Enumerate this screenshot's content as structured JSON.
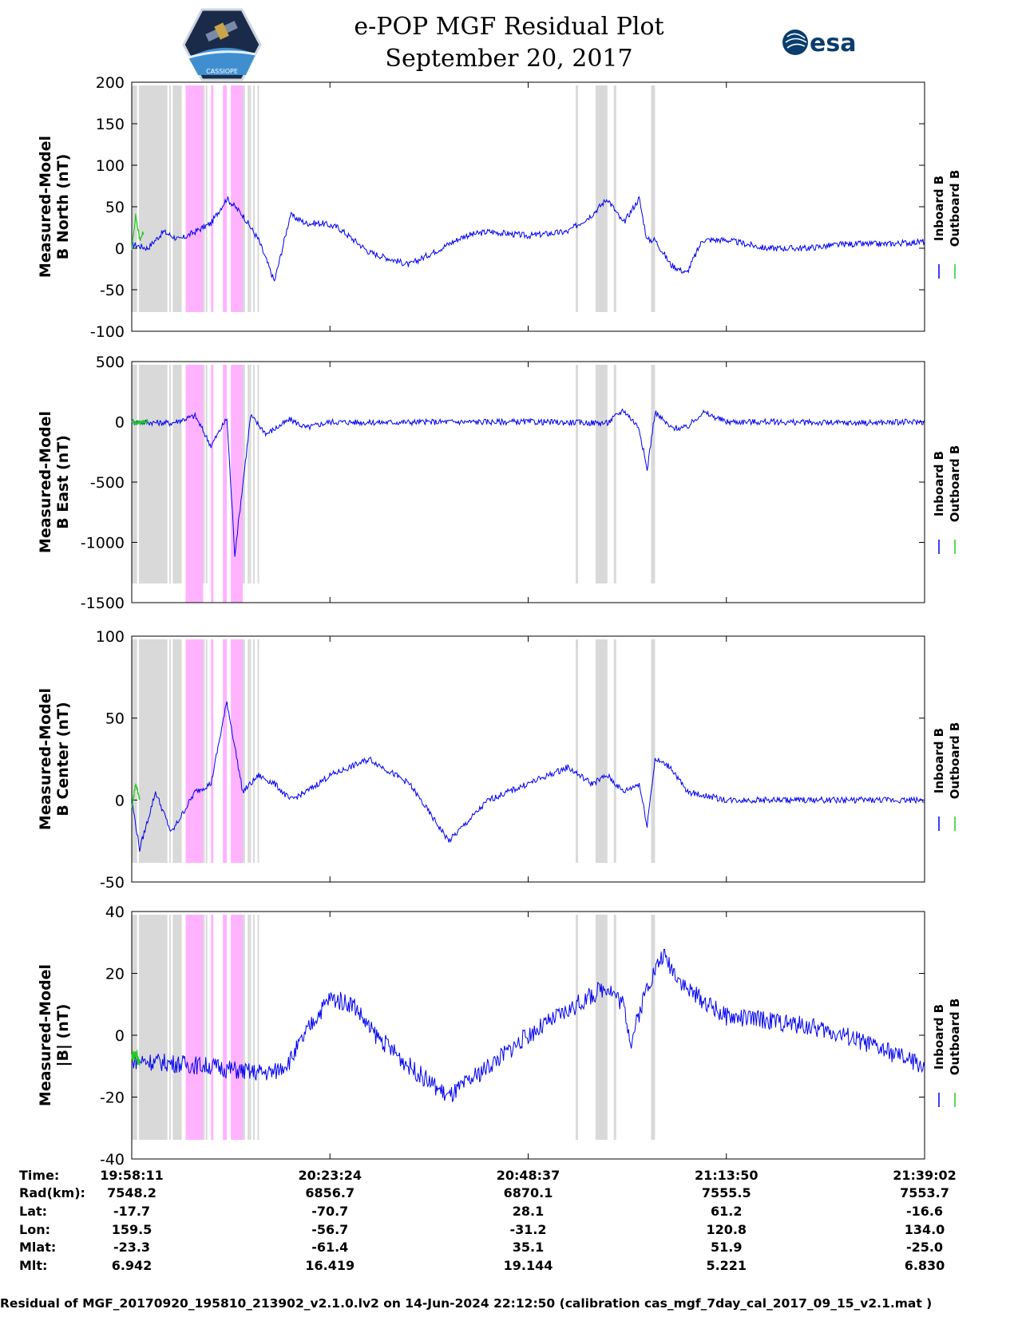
{
  "header": {
    "title": "e-POP MGF Residual Plot",
    "date": "September 20, 2017",
    "left_logo": {
      "icon": "cassiope-mission-logo",
      "text": "CASSIOPE"
    },
    "right_logo": {
      "icon": "esa-logo",
      "text": "esa"
    }
  },
  "colors": {
    "inboard": "#0000ee",
    "outboard": "#22cc22",
    "gap_shade": "#d9d9d9",
    "flag_shade": "#ffb3ff"
  },
  "chart_data": [
    {
      "type": "line",
      "ylabel_line1": "Measured-Model",
      "ylabel_line2": "B North (nT)",
      "ylim": [
        -100,
        200
      ],
      "yticks": [
        "200",
        "150",
        "100",
        "50",
        "0",
        "-50",
        "-100"
      ],
      "legend": [
        "Inboard B",
        "Outboard B"
      ],
      "series": [
        {
          "name": "Inboard B",
          "x": [
            0,
            0.02,
            0.04,
            0.06,
            0.08,
            0.1,
            0.12,
            0.14,
            0.16,
            0.18,
            0.2,
            0.22,
            0.24,
            0.26,
            0.3,
            0.35,
            0.4,
            0.42,
            0.45,
            0.5,
            0.55,
            0.58,
            0.6,
            0.62,
            0.64,
            0.65,
            0.66,
            0.68,
            0.7,
            0.72,
            0.75,
            0.8,
            0.85,
            0.9,
            0.95,
            1.0
          ],
          "values": [
            5,
            0,
            20,
            10,
            20,
            30,
            60,
            40,
            10,
            -40,
            40,
            30,
            30,
            25,
            -5,
            -20,
            5,
            15,
            20,
            15,
            20,
            40,
            60,
            30,
            60,
            10,
            10,
            -20,
            -30,
            10,
            10,
            0,
            0,
            5,
            5,
            8
          ]
        },
        {
          "name": "Outboard B",
          "x": [
            0,
            0.005,
            0.01,
            0.015
          ],
          "values": [
            0,
            40,
            10,
            20
          ]
        }
      ]
    },
    {
      "type": "line",
      "ylabel_line1": "Measured-Model",
      "ylabel_line2": "B East (nT)",
      "ylim": [
        -1500,
        500
      ],
      "yticks": [
        "500",
        "0",
        "-500",
        "-1000",
        "-1500"
      ],
      "legend": [
        "Inboard B",
        "Outboard B"
      ],
      "series": [
        {
          "name": "Inboard B",
          "x": [
            0,
            0.05,
            0.08,
            0.1,
            0.12,
            0.13,
            0.15,
            0.17,
            0.2,
            0.22,
            0.25,
            0.3,
            0.4,
            0.5,
            0.6,
            0.62,
            0.64,
            0.65,
            0.66,
            0.68,
            0.7,
            0.72,
            0.75,
            0.8,
            0.9,
            1.0
          ],
          "values": [
            0,
            -10,
            50,
            -200,
            30,
            -1100,
            50,
            -100,
            20,
            -50,
            0,
            -5,
            0,
            0,
            -10,
            100,
            -50,
            -400,
            80,
            -50,
            -50,
            80,
            0,
            0,
            -10,
            0
          ]
        },
        {
          "name": "Outboard B",
          "x": [
            0,
            0.01,
            0.02
          ],
          "values": [
            0,
            -10,
            5
          ]
        }
      ]
    },
    {
      "type": "line",
      "ylabel_line1": "Measured-Model",
      "ylabel_line2": "B Center (nT)",
      "ylim": [
        -50,
        100
      ],
      "yticks": [
        "100",
        "50",
        "0",
        "-50"
      ],
      "legend": [
        "Inboard B",
        "Outboard B"
      ],
      "series": [
        {
          "name": "Inboard B",
          "x": [
            0,
            0.01,
            0.03,
            0.05,
            0.08,
            0.1,
            0.12,
            0.14,
            0.16,
            0.18,
            0.2,
            0.22,
            0.25,
            0.3,
            0.35,
            0.4,
            0.45,
            0.5,
            0.55,
            0.58,
            0.6,
            0.62,
            0.64,
            0.65,
            0.66,
            0.68,
            0.7,
            0.75,
            0.8,
            0.9,
            1.0
          ],
          "values": [
            0,
            -30,
            5,
            -20,
            5,
            10,
            60,
            5,
            15,
            10,
            0,
            5,
            15,
            25,
            10,
            -25,
            0,
            10,
            20,
            10,
            15,
            5,
            10,
            -15,
            25,
            20,
            5,
            0,
            0,
            0,
            0
          ]
        },
        {
          "name": "Outboard B",
          "x": [
            0,
            0.005,
            0.01
          ],
          "values": [
            -5,
            10,
            0
          ]
        }
      ]
    },
    {
      "type": "line",
      "ylabel_line1": "Measured-Model",
      "ylabel_line2": "|B| (nT)",
      "ylim": [
        -40,
        40
      ],
      "yticks": [
        "40",
        "20",
        "0",
        "-20",
        "-40"
      ],
      "legend": [
        "Inboard B",
        "Outboard B"
      ],
      "series": [
        {
          "name": "Inboard B",
          "x": [
            0,
            0.05,
            0.1,
            0.15,
            0.18,
            0.2,
            0.23,
            0.25,
            0.28,
            0.3,
            0.35,
            0.4,
            0.45,
            0.5,
            0.55,
            0.6,
            0.62,
            0.63,
            0.65,
            0.67,
            0.7,
            0.75,
            0.8,
            0.85,
            0.9,
            0.95,
            1.0
          ],
          "values": [
            -8,
            -9,
            -10,
            -12,
            -12,
            -8,
            5,
            12,
            10,
            2,
            -10,
            -20,
            -10,
            0,
            8,
            16,
            10,
            -2,
            16,
            26,
            15,
            6,
            5,
            3,
            0,
            -5,
            -10
          ]
        },
        {
          "name": "Outboard B",
          "x": [
            0,
            0.005,
            0.01
          ],
          "values": [
            -8,
            -6,
            -9
          ]
        }
      ]
    }
  ],
  "xaxis": {
    "columns": [
      {
        "time": "19:58:11",
        "rad": "7548.2",
        "lat": "-17.7",
        "lon": "159.5",
        "mlat": "-23.3",
        "mlt": "6.942"
      },
      {
        "time": "20:23:24",
        "rad": "6856.7",
        "lat": "-70.7",
        "lon": "-56.7",
        "mlat": "-61.4",
        "mlt": "16.419"
      },
      {
        "time": "20:48:37",
        "rad": "6870.1",
        "lat": "28.1",
        "lon": "-31.2",
        "mlat": "35.1",
        "mlt": "19.144"
      },
      {
        "time": "21:13:50",
        "rad": "7555.5",
        "lat": "61.2",
        "lon": "120.8",
        "mlat": "51.9",
        "mlt": "5.221"
      },
      {
        "time": "21:39:02",
        "rad": "7553.7",
        "lat": "-16.6",
        "lon": "134.0",
        "mlat": "-25.0",
        "mlt": "6.830"
      }
    ],
    "row_labels": [
      "Time:",
      "Rad(km):",
      "Lat:",
      "Lon:",
      "Mlat:",
      "Mlt:"
    ]
  },
  "footer": "Residual of MGF_20170920_195810_213902_v2.1.0.lv2 on 14-Jun-2024 22:12:50 (calibration cas_mgf_7day_cal_2017_09_15_v2.1.mat )"
}
